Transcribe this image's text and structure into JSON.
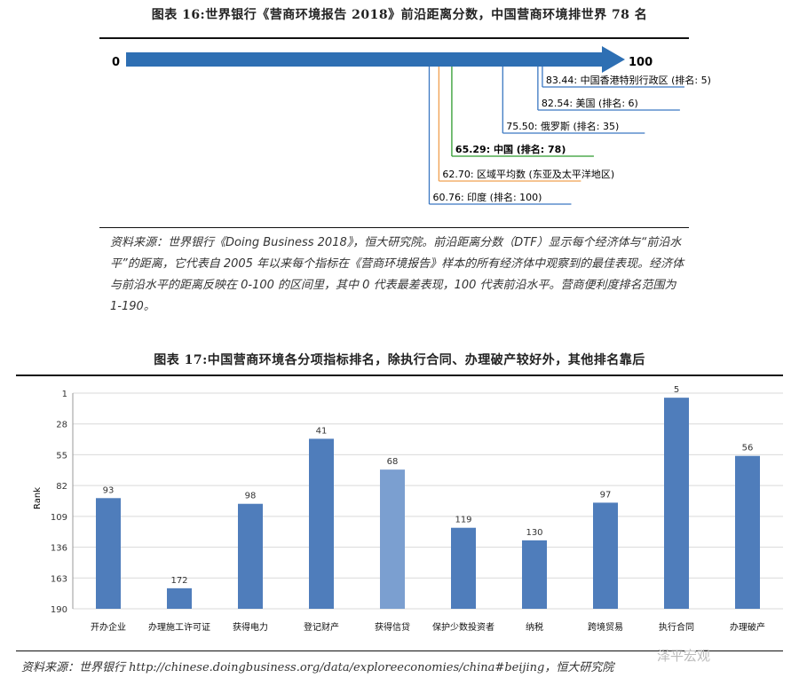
{
  "figure16": {
    "title": "图表 16:世界银行《营商环境报告 2018》前沿距离分数，中国营商环境排世界 78 名",
    "axis_start": "0",
    "axis_end": "100",
    "colors": {
      "arrow": "#2e6fb3",
      "hk": "#3b78c2",
      "us": "#3b78c2",
      "ru": "#3b78c2",
      "cn": "#2d9b2d",
      "region": "#f0a050",
      "in": "#3b78c2"
    },
    "entries": [
      {
        "score": "83.44",
        "label": "中国香港特别行政区 (排名: 5)",
        "bold": false
      },
      {
        "score": "82.54",
        "label": "美国 (排名: 6)",
        "bold": false
      },
      {
        "score": "75.50",
        "label": "俄罗斯 (排名: 35)",
        "bold": false
      },
      {
        "score": "65.29",
        "label": "中国 (排名: 78)",
        "bold": true
      },
      {
        "score": "62.70",
        "label": "区域平均数 (东亚及太平洋地区)",
        "bold": false
      },
      {
        "score": "60.76",
        "label": "印度 (排名: 100)",
        "bold": false
      }
    ],
    "note": "资料来源：世界银行《Doing Business 2018》，恒大研究院。前沿距离分数（DTF）显示每个经济体与“前沿水平”的距离，它代表自 2005 年以来每个指标在《营商环境报告》样本的所有经济体中观察到的最佳表现。经济体与前沿水平的距离反映在 0-100 的区间里，其中 0 代表最差表现，100 代表前沿水平。营商便利度排名范围为 1-190。"
  },
  "figure17": {
    "title": "图表 17:中国营商环境各分项指标排名，除执行合同、办理破产较好外，其他排名靠后",
    "source": "资料来源：世界银行 http://chinese.doingbusiness.org/data/exploreeconomies/china#beijing，恒大研究院",
    "watermark": "泽平宏观",
    "chart_data": {
      "type": "bar",
      "ylabel": "Rank",
      "yaxis_inverted": true,
      "ylim": [
        1,
        190
      ],
      "yticks": [
        1,
        28,
        55,
        82,
        109,
        136,
        163,
        190
      ],
      "categories": [
        "开办企业",
        "办理施工许可证",
        "获得电力",
        "登记财产",
        "获得信贷",
        "保护少数投资者",
        "纳税",
        "跨境贸易",
        "执行合同",
        "办理破产"
      ],
      "values": [
        93,
        172,
        98,
        41,
        68,
        119,
        130,
        97,
        5,
        56
      ],
      "highlight_index": 4,
      "colors": {
        "bar": "#4f7dbb",
        "highlight": "#7b9fd0",
        "grid": "#d9d9d9"
      }
    }
  }
}
